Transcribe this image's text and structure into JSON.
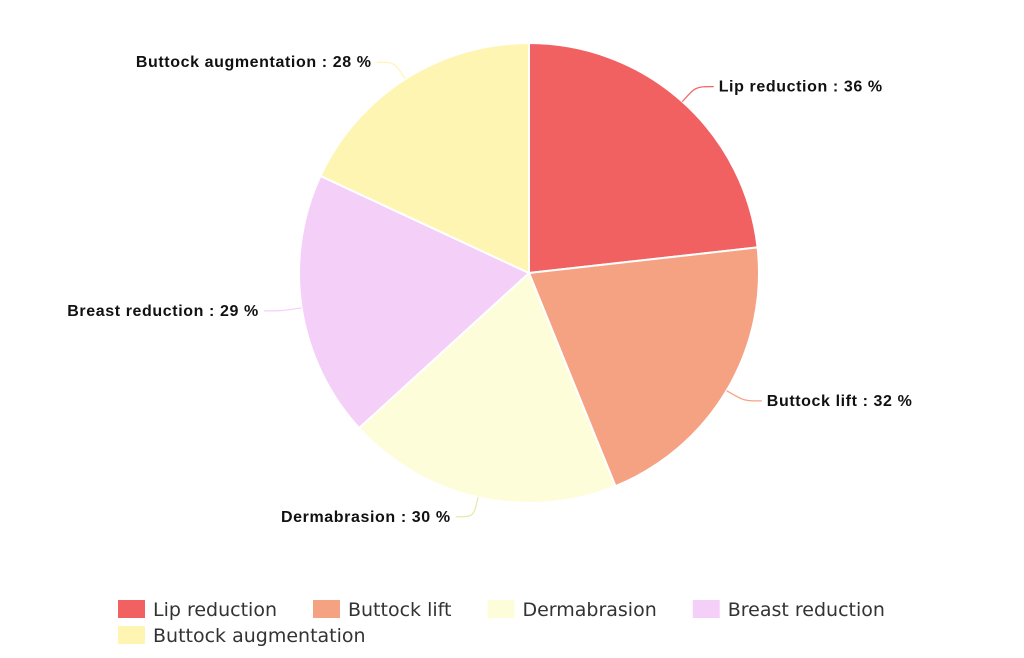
{
  "chart_data": {
    "type": "pie",
    "categories": [
      "Lip reduction",
      "Buttock lift",
      "Dermabrasion",
      "Breast reduction",
      "Buttock augmentation"
    ],
    "values": [
      36,
      32,
      30,
      29,
      28
    ],
    "value_suffix": " %",
    "label_separator": " : ",
    "colors": [
      "#f26161",
      "#f5a283",
      "#fdfdda",
      "#f4cff8",
      "#fff5b3"
    ],
    "start_angle_deg": 0,
    "direction": "clockwise",
    "legend": {
      "position": "bottom-left",
      "items": [
        "Lip reduction",
        "Buttock lift",
        "Dermabrasion",
        "Breast reduction",
        "Buttock augmentation"
      ]
    }
  }
}
